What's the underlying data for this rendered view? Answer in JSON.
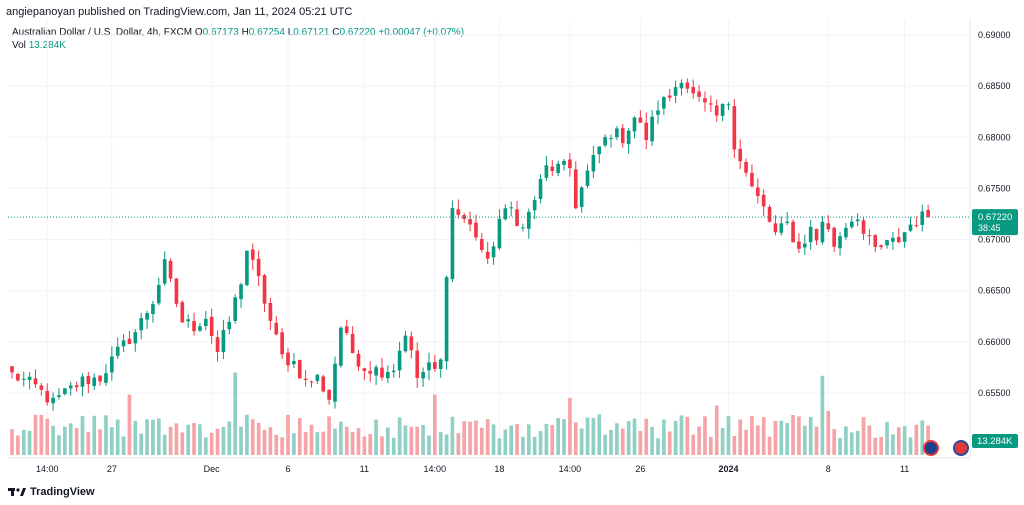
{
  "header": {
    "published_by": "angiepanoyan published on TradingView.com, Jan 11, 2024 05:21 UTC"
  },
  "symbol": {
    "name": "Australian Dollar / U.S. Dollar, 4h, FXCM",
    "open_label": "O",
    "open": "0.67173",
    "high_label": "H",
    "high": "0.67254",
    "low_label": "L",
    "low": "0.67121",
    "close_label": "C",
    "close": "0.67220",
    "change": "+0.00047 (+0.07%)"
  },
  "volume": {
    "label": "Vol",
    "value": "13.284K"
  },
  "price_badge": {
    "price": "0.67220",
    "countdown": "38:45"
  },
  "volume_badge": "13.284K",
  "footer": {
    "brand": "TradingView"
  },
  "colors": {
    "up": "#089981",
    "down": "#f23645",
    "up_volume": "#8fcfc4",
    "down_volume": "#f5a3a6",
    "grid": "#f0f3fa",
    "price_line": "#089981"
  },
  "chart_data": {
    "type": "candlestick",
    "title": "Australian Dollar / U.S. Dollar, 4h, FXCM",
    "ylim": [
      0.649,
      0.6905
    ],
    "y_ticks": [
      "0.69000",
      "0.68500",
      "0.68000",
      "0.67500",
      "0.67000",
      "0.66500",
      "0.66000",
      "0.65500"
    ],
    "x_labels": [
      {
        "label": "14:00",
        "index": 6
      },
      {
        "label": "27",
        "index": 17
      },
      {
        "label": "Dec",
        "index": 34
      },
      {
        "label": "6",
        "index": 47
      },
      {
        "label": "11",
        "index": 60
      },
      {
        "label": "14:00",
        "index": 72
      },
      {
        "label": "18",
        "index": 83
      },
      {
        "label": "14:00",
        "index": 95
      },
      {
        "label": "26",
        "index": 107
      },
      {
        "label": "2024",
        "index": 122
      },
      {
        "label": "8",
        "index": 139
      },
      {
        "label": "11",
        "index": 152
      }
    ],
    "close_anchors": [
      [
        0,
        0.6568
      ],
      [
        4,
        0.6556
      ],
      [
        7,
        0.654
      ],
      [
        9,
        0.655
      ],
      [
        12,
        0.6562
      ],
      [
        15,
        0.6565
      ],
      [
        18,
        0.659
      ],
      [
        21,
        0.661
      ],
      [
        24,
        0.664
      ],
      [
        26,
        0.6675
      ],
      [
        29,
        0.662
      ],
      [
        31,
        0.6615
      ],
      [
        33,
        0.6625
      ],
      [
        35,
        0.659
      ],
      [
        37,
        0.662
      ],
      [
        39,
        0.666
      ],
      [
        40,
        0.669
      ],
      [
        42,
        0.666
      ],
      [
        44,
        0.662
      ],
      [
        46,
        0.6585
      ],
      [
        48,
        0.658
      ],
      [
        50,
        0.656
      ],
      [
        52,
        0.6565
      ],
      [
        54,
        0.6545
      ],
      [
        56,
        0.6615
      ],
      [
        58,
        0.659
      ],
      [
        60,
        0.6575
      ],
      [
        63,
        0.6572
      ],
      [
        65,
        0.6575
      ],
      [
        67,
        0.661
      ],
      [
        69,
        0.6565
      ],
      [
        71,
        0.6575
      ],
      [
        72,
        0.6572
      ],
      [
        73,
        0.658
      ],
      [
        74,
        0.667
      ],
      [
        75,
        0.673
      ],
      [
        77,
        0.672
      ],
      [
        79,
        0.6705
      ],
      [
        81,
        0.6675
      ],
      [
        83,
        0.672
      ],
      [
        85,
        0.673
      ],
      [
        87,
        0.671
      ],
      [
        89,
        0.674
      ],
      [
        91,
        0.677
      ],
      [
        93,
        0.677
      ],
      [
        95,
        0.677
      ],
      [
        96,
        0.6735
      ],
      [
        98,
        0.6765
      ],
      [
        100,
        0.679
      ],
      [
        102,
        0.6805
      ],
      [
        104,
        0.68
      ],
      [
        106,
        0.682
      ],
      [
        108,
        0.68
      ],
      [
        110,
        0.683
      ],
      [
        112,
        0.684
      ],
      [
        114,
        0.686
      ],
      [
        116,
        0.684
      ],
      [
        118,
        0.683
      ],
      [
        120,
        0.682
      ],
      [
        122,
        0.6835
      ],
      [
        123,
        0.6795
      ],
      [
        124,
        0.678
      ],
      [
        126,
        0.675
      ],
      [
        128,
        0.673
      ],
      [
        130,
        0.6705
      ],
      [
        132,
        0.6715
      ],
      [
        134,
        0.669
      ],
      [
        136,
        0.671
      ],
      [
        137,
        0.67
      ],
      [
        138,
        0.672
      ],
      [
        140,
        0.6695
      ],
      [
        142,
        0.6715
      ],
      [
        144,
        0.6725
      ],
      [
        145,
        0.6705
      ],
      [
        147,
        0.669
      ],
      [
        149,
        0.6695
      ],
      [
        151,
        0.67
      ],
      [
        153,
        0.6715
      ],
      [
        155,
        0.6722
      ]
    ],
    "volume_peaks": [
      {
        "index": 20,
        "value": 0.55
      },
      {
        "index": 38,
        "value": 0.75
      },
      {
        "index": 72,
        "value": 0.55
      },
      {
        "index": 95,
        "value": 0.52
      },
      {
        "index": 120,
        "value": 0.45
      },
      {
        "index": 138,
        "value": 0.72
      },
      {
        "index": 139,
        "value": 0.4
      }
    ],
    "last_price": 0.6722
  }
}
